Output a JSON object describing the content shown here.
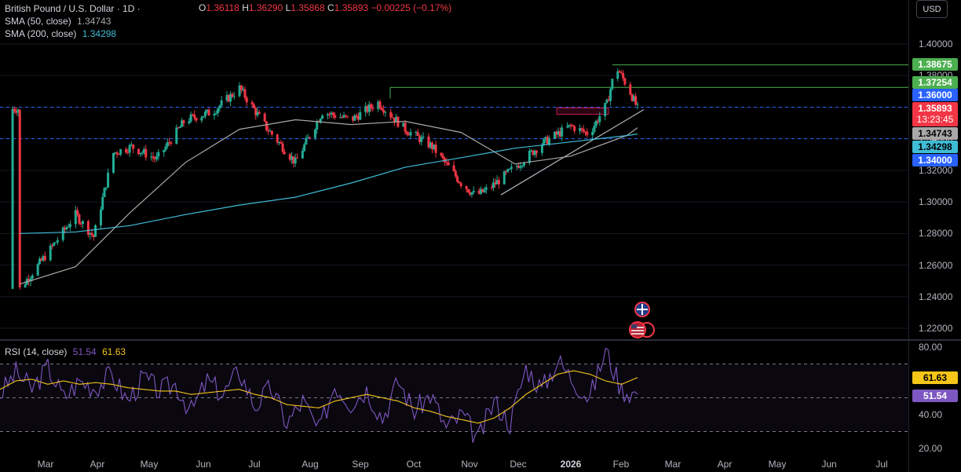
{
  "header": {
    "symbol": "British Pound / U.S. Dollar · 1D ·",
    "ohlc": {
      "o_label": "O",
      "o": "1.36118",
      "h_label": "H",
      "h": "1.36290",
      "l_label": "L",
      "l": "1.35868",
      "c_label": "C",
      "c": "1.35893",
      "change": "−0.00225 (−0.17%)"
    },
    "sma50_label": "SMA (50, close)",
    "sma50_value": "1.34743",
    "sma200_label": "SMA (200, close)",
    "sma200_value": "1.34298",
    "currency": "USD"
  },
  "rsi": {
    "label": "RSI (14, close)",
    "value": "51.54",
    "ma_value": "61.63"
  },
  "price_tags": {
    "resistance_high": "1.38675",
    "resistance_mid": "1.37254",
    "level_136": "1.36000",
    "last": "1.35893",
    "countdown": "13:23:45",
    "sma50": "1.34743",
    "sma200": "1.34298",
    "level_134": "1.34000",
    "rsi_ma": "61.63",
    "rsi_val": "51.54"
  },
  "colors": {
    "up": "#22ab94",
    "down": "#f23645",
    "sma50": "#a8a8a8",
    "sma200": "#3fbcd6",
    "rsi": "#7e57c2",
    "rsi_ma": "#f5c518",
    "hline": "#4caf50",
    "dashed": "#2962ff"
  },
  "chart_data": [
    {
      "type": "line",
      "title": "British Pound / U.S. Dollar · 1D",
      "x_ticks": [
        "Mar",
        "Apr",
        "May",
        "Jun",
        "Jul",
        "Aug",
        "Sep",
        "Oct",
        "Nov",
        "Dec",
        "2026",
        "Feb",
        "Mar",
        "Apr",
        "May",
        "Jun",
        "Jul"
      ],
      "y_ticks": [
        "1.40000",
        "1.38000",
        "1.36000",
        "1.34000",
        "1.32000",
        "1.30000",
        "1.28000",
        "1.26000",
        "1.24000",
        "1.22000"
      ],
      "ylim": [
        1.21,
        1.41
      ],
      "series": [
        {
          "name": "Close",
          "x": [
            "2025-02-28",
            "2025-03-15",
            "2025-03-31",
            "2025-04-10",
            "2025-04-21",
            "2025-05-01",
            "2025-05-15",
            "2025-05-31",
            "2025-06-15",
            "2025-06-30",
            "2025-07-15",
            "2025-07-31",
            "2025-08-15",
            "2025-08-31",
            "2025-09-15",
            "2025-09-30",
            "2025-10-15",
            "2025-10-31",
            "2025-11-08",
            "2025-11-15",
            "2025-11-30",
            "2025-12-15",
            "2025-12-31",
            "2026-01-10",
            "2026-01-20",
            "2026-01-25",
            "2026-02-01",
            "2026-02-06"
          ],
          "values": [
            1.245,
            1.267,
            1.292,
            1.278,
            1.331,
            1.335,
            1.327,
            1.352,
            1.357,
            1.372,
            1.347,
            1.325,
            1.357,
            1.352,
            1.363,
            1.346,
            1.335,
            1.312,
            1.304,
            1.308,
            1.322,
            1.337,
            1.348,
            1.343,
            1.362,
            1.386,
            1.372,
            1.359
          ]
        },
        {
          "name": "SMA (50, close)",
          "x": [
            "2025-02-28",
            "2025-03-31",
            "2025-04-30",
            "2025-05-31",
            "2025-06-30",
            "2025-07-31",
            "2025-08-31",
            "2025-09-30",
            "2025-10-31",
            "2025-11-30",
            "2025-12-31",
            "2026-01-31",
            "2026-02-06"
          ],
          "values": [
            1.248,
            1.259,
            1.293,
            1.325,
            1.346,
            1.352,
            1.349,
            1.351,
            1.344,
            1.324,
            1.329,
            1.342,
            1.347
          ]
        },
        {
          "name": "SMA (200, close)",
          "x": [
            "2025-02-28",
            "2025-03-31",
            "2025-04-30",
            "2025-05-31",
            "2025-06-30",
            "2025-07-31",
            "2025-08-31",
            "2025-09-30",
            "2025-10-31",
            "2025-11-30",
            "2025-12-31",
            "2026-01-31",
            "2026-02-06"
          ],
          "values": [
            1.28,
            1.281,
            1.285,
            1.292,
            1.298,
            1.303,
            1.312,
            1.322,
            1.328,
            1.334,
            1.338,
            1.342,
            1.343
          ]
        }
      ],
      "horizontal_lines": [
        1.38675,
        1.37254,
        1.36,
        1.34
      ]
    },
    {
      "type": "line",
      "title": "RSI (14, close)",
      "y_ticks": [
        "80.00",
        "40.00",
        "20.00"
      ],
      "ylim": [
        20,
        80
      ],
      "bands": [
        30,
        50,
        70
      ],
      "series": [
        {
          "name": "RSI",
          "values": [
            52,
            65,
            55,
            68,
            50,
            60,
            56,
            64,
            48,
            62,
            54,
            58,
            42,
            60,
            52,
            66,
            45,
            56,
            35,
            48,
            30,
            58,
            47,
            55,
            38,
            60,
            42,
            52,
            32,
            40,
            25,
            48,
            35,
            68,
            55,
            72,
            60,
            50,
            78,
            55,
            52
          ]
        },
        {
          "name": "RSI MA",
          "values": [
            55,
            60,
            61,
            58,
            60,
            58,
            59,
            58,
            56,
            55,
            54,
            54,
            52,
            53,
            54,
            55,
            52,
            50,
            46,
            45,
            44,
            48,
            50,
            52,
            50,
            48,
            44,
            42,
            39,
            37,
            35,
            38,
            44,
            52,
            58,
            64,
            66,
            64,
            60,
            58,
            62
          ]
        }
      ]
    }
  ]
}
